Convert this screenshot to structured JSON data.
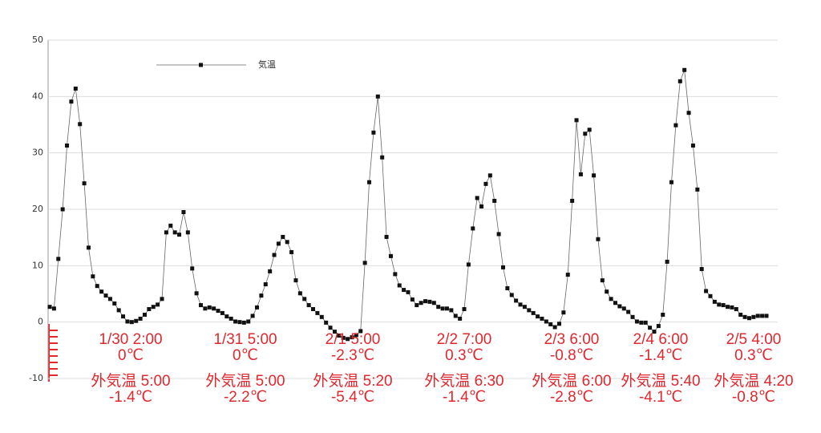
{
  "chart_data": {
    "type": "line",
    "series": [
      {
        "name": "気温",
        "color": "#111111",
        "values": [
          2.7,
          2.4,
          11.2,
          20,
          31.3,
          39.1,
          41.4,
          35.1,
          24.6,
          13.2,
          8.1,
          6.4,
          5.4,
          4.7,
          4.1,
          3.3,
          2.1,
          1.0,
          0.1,
          0,
          0.2,
          0.6,
          1.3,
          2.3,
          2.7,
          3.1,
          4.1,
          15.9,
          17.1,
          15.9,
          15.5,
          19.5,
          15.9,
          9.5,
          5.1,
          3.0,
          2.4,
          2.6,
          2.4,
          2.0,
          1.6,
          1.0,
          0.6,
          0.1,
          0,
          -0.1,
          0.1,
          1.1,
          2.6,
          4.7,
          6.7,
          9.0,
          11.9,
          13.9,
          15.1,
          14.2,
          12.4,
          7.4,
          5.1,
          4.1,
          3.0,
          2.3,
          1.6,
          0.9,
          -0.1,
          -1.0,
          -1.7,
          -2.4,
          -2.8,
          -3.0,
          -2.7,
          -2.3,
          -1.6,
          10.5,
          24.8,
          33.6,
          40,
          29.2,
          15.1,
          11.7,
          8.5,
          6.5,
          5.7,
          5.3,
          4.0,
          3.0,
          3.4,
          3.7,
          3.6,
          3.4,
          2.7,
          2.4,
          2.4,
          2.1,
          1.1,
          0.6,
          2.3,
          10.2,
          16.6,
          22.0,
          20.5,
          24.5,
          26.0,
          21.5,
          15.6,
          9.7,
          6.0,
          4.8,
          3.8,
          3.1,
          2.7,
          2.1,
          1.6,
          1.0,
          0.6,
          0.1,
          -0.4,
          -0.9,
          -0.3,
          1.7,
          8.4,
          21.5,
          35.8,
          26.2,
          33.4,
          34.1,
          26.0,
          14.7,
          7.4,
          5.4,
          4.1,
          3.4,
          2.8,
          2.4,
          1.8,
          0.9,
          0.1,
          -0.1,
          -0.1,
          -1.0,
          -1.7,
          -0.7,
          1.3,
          10.7,
          24.8,
          34.9,
          42.7,
          44.7,
          37.1,
          31.3,
          23.5,
          9.4,
          5.5,
          4.6,
          3.6,
          3.1,
          3.0,
          2.7,
          2.6,
          2.3,
          1.3,
          0.9,
          0.7,
          0.9,
          1.1,
          1.1,
          1.1
        ]
      }
    ],
    "ylim": [
      -10,
      50
    ],
    "yticks": [
      -10,
      0,
      10,
      20,
      30,
      40,
      50
    ],
    "grid": true,
    "legend": "top-left",
    "annotations": [
      {
        "time": "1/30 2:00",
        "temp": "0℃",
        "outdoor_time": "外気温 5:00",
        "outdoor_temp": "-1.4℃"
      },
      {
        "time": "1/31 5:00",
        "temp": "0℃",
        "outdoor_time": "外気温 5:00",
        "outdoor_temp": "-2.2℃"
      },
      {
        "time": "2/1 5:00",
        "temp": "-2.3℃",
        "outdoor_time": "外気温 5:20",
        "outdoor_temp": "-5.4℃"
      },
      {
        "time": "2/2 7:00",
        "temp": "0.3℃",
        "outdoor_time": "外気温 6:30",
        "outdoor_temp": "-1.4℃"
      },
      {
        "time": "2/3 6:00",
        "temp": "-0.8℃",
        "outdoor_time": "外気温 6:00",
        "outdoor_temp": "-2.8℃"
      },
      {
        "time": "2/4 6:00",
        "temp": "-1.4℃",
        "outdoor_time": "外気温 5:40",
        "outdoor_temp": "-4.1℃"
      },
      {
        "time": "2/5 4:00",
        "temp": "0.3℃",
        "outdoor_time": "外気温 4:20",
        "outdoor_temp": "-0.8℃"
      }
    ]
  }
}
